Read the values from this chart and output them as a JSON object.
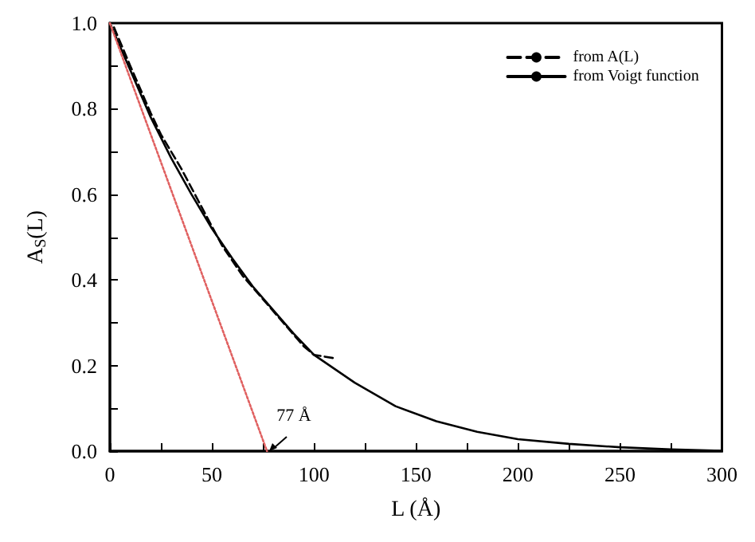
{
  "chart_data": {
    "type": "line",
    "xlabel": "L (Å)",
    "ylabel": "A$_{S}$(L)",
    "xlim": [
      0,
      300
    ],
    "ylim": [
      0,
      1
    ],
    "xticks": [
      0,
      {
        "value": 25,
        "label": null
      },
      50,
      {
        "value": 75,
        "label": null
      },
      100,
      {
        "value": 125,
        "label": null
      },
      150,
      {
        "value": 175,
        "label": null
      },
      200,
      {
        "value": 225,
        "label": null
      },
      250,
      {
        "value": 275,
        "label": null
      },
      300
    ],
    "yticks": [
      {
        "value": 0,
        "label": "0.0"
      },
      {
        "value": 0.1,
        "label": null
      },
      {
        "value": 0.2,
        "label": "0.2"
      },
      {
        "value": 0.3,
        "label": null
      },
      {
        "value": 0.4,
        "label": "0.4"
      },
      {
        "value": 0.5,
        "label": null
      },
      {
        "value": 0.6,
        "label": "0.6"
      },
      {
        "value": 0.7,
        "label": null
      },
      {
        "value": 0.8,
        "label": "0.8"
      },
      {
        "value": 0.9,
        "label": null
      },
      {
        "value": 1,
        "label": "1.0"
      }
    ],
    "grid": false,
    "legend": "top right",
    "marker": "none",
    "series": [
      {
        "name": "from A(L)",
        "color": "#000000",
        "line_style": "dashed",
        "x": [
          2,
          10,
          20,
          25,
          35,
          45,
          55,
          65,
          75,
          85,
          95,
          100,
          110
        ],
        "values": [
          0.99,
          0.9,
          0.79,
          0.74,
          0.66,
          0.57,
          0.48,
          0.41,
          0.355,
          0.3,
          0.245,
          0.225,
          0.217
        ]
      },
      {
        "name": "from Voigt function",
        "color": "#000000",
        "line_style": "solid",
        "x": [
          0,
          10,
          20,
          30,
          40,
          50,
          60,
          70,
          80,
          90,
          100,
          120,
          140,
          160,
          180,
          200,
          225,
          250,
          275,
          300
        ],
        "values": [
          1,
          0.89,
          0.78,
          0.685,
          0.6,
          0.52,
          0.45,
          0.385,
          0.33,
          0.275,
          0.225,
          0.16,
          0.105,
          0.07,
          0.045,
          0.028,
          0.017,
          0.009,
          0.004,
          0.001
        ]
      },
      {
        "color": "#e06060",
        "line_style": "dotted",
        "x": [
          0,
          77
        ],
        "values": [
          1,
          0
        ]
      }
    ],
    "annotations": [
      {
        "text": "77 Å",
        "x": 77,
        "y": 0
      }
    ]
  }
}
